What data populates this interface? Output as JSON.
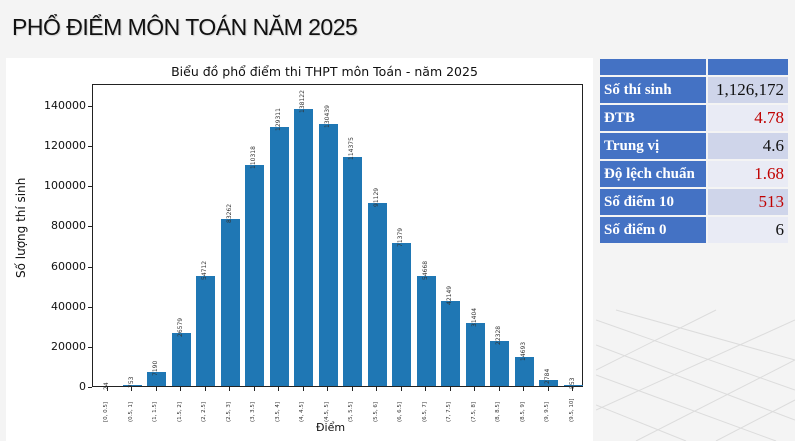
{
  "page": {
    "title": "PHỔ ĐIỂM MÔN TOÁN NĂM 2025"
  },
  "chart_data": {
    "type": "bar",
    "title": "Biểu đồ phổ điểm thi THPT môn Toán - năm 2025",
    "xlabel": "Điểm",
    "ylabel": "Số lượng thí sinh",
    "categories": [
      "[0, 0.5]",
      "(0.5, 1]",
      "(1, 1.5]",
      "(1.5, 2]",
      "(2, 2.5]",
      "(2.5, 3]",
      "(3, 3.5]",
      "(3.5, 4]",
      "(4, 4.5]",
      "(4.5, 5]",
      "(5, 5.5]",
      "(5.5, 6]",
      "(6, 6.5]",
      "(6.5, 7]",
      "(7, 7.5]",
      "(7.5, 8]",
      "(8, 8.5]",
      "(8.5, 9]",
      "(9, 9.5]",
      "(9.5, 10]"
    ],
    "values": [
      24,
      753,
      7190,
      26579,
      54712,
      83262,
      110318,
      129311,
      138122,
      130439,
      114375,
      91129,
      71379,
      54668,
      42149,
      31404,
      22328,
      14693,
      2784,
      553
    ],
    "value_labels": [
      "24",
      "753",
      "7190",
      "26579",
      "54712",
      "83262",
      "110318",
      "129311",
      "138122",
      "130439",
      "114375",
      "91129",
      "71379",
      "54668",
      "42149",
      "31404",
      "22328",
      "14693",
      "2784",
      "553"
    ],
    "yticks": [
      "0",
      "20000",
      "40000",
      "60000",
      "80000",
      "100000",
      "120000",
      "140000"
    ],
    "ylim": [
      0,
      151000
    ],
    "grid": false,
    "legend": null,
    "bar_color": "#1f77b4"
  },
  "stats": {
    "header": [
      "",
      ""
    ],
    "rows": [
      {
        "label": "Số thí sinh",
        "value": "1,126,172",
        "highlight": false
      },
      {
        "label": "ĐTB",
        "value": "4.78",
        "highlight": true
      },
      {
        "label": "Trung vị",
        "value": "4.6",
        "highlight": false
      },
      {
        "label": "Độ lệch chuẩn",
        "value": "1.68",
        "highlight": true
      },
      {
        "label": "Số điểm 10",
        "value": "513",
        "highlight": true
      },
      {
        "label": "Số điểm 0",
        "value": "6",
        "highlight": false
      }
    ],
    "colors": {
      "header": "#4472c4",
      "highlight": "#c00000"
    }
  }
}
